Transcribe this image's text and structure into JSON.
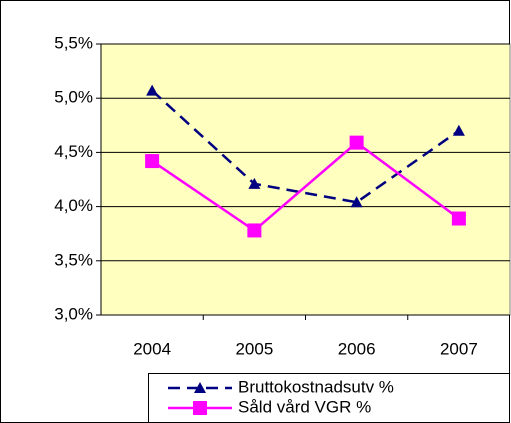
{
  "chart_data": {
    "type": "line",
    "categories": [
      "2004",
      "2005",
      "2006",
      "2007"
    ],
    "series": [
      {
        "name": "Bruttokostnadsutv %",
        "color": "#000080",
        "dashed": true,
        "marker": "triangle",
        "values": [
          5.07,
          4.21,
          4.04,
          4.7
        ]
      },
      {
        "name": "Såld vård VGR %",
        "color": "#ff00ff",
        "dashed": false,
        "marker": "square",
        "values": [
          4.42,
          3.78,
          4.59,
          3.89
        ]
      }
    ],
    "ylim": [
      3.0,
      5.5
    ],
    "yticks": [
      {
        "value": 3.0,
        "label": "3,0%"
      },
      {
        "value": 3.5,
        "label": "3,5%"
      },
      {
        "value": 4.0,
        "label": "4,0%"
      },
      {
        "value": 4.5,
        "label": "4,5%"
      },
      {
        "value": 5.0,
        "label": "5,0%"
      },
      {
        "value": 5.5,
        "label": "5,5%"
      }
    ],
    "grid": true,
    "plot_background": "#ffffc0",
    "legend": "bottom"
  }
}
